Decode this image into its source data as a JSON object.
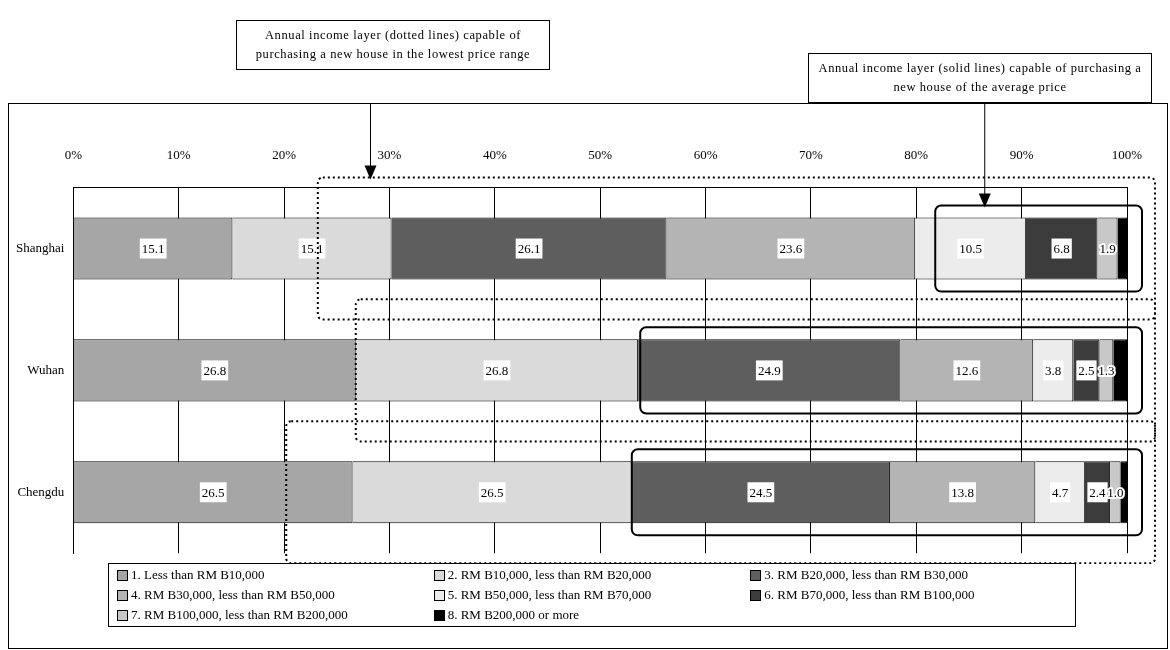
{
  "chart_data": {
    "type": "bar",
    "orientation": "horizontal",
    "stacked": true,
    "categories": [
      "Shanghai",
      "Wuhan",
      "Chengdu"
    ],
    "series": [
      {
        "name": "1. Less than RM B10,000",
        "color": "#a6a6a6",
        "values": [
          15.1,
          26.8,
          26.5
        ],
        "value_labels": [
          "15.1",
          "26.8",
          "26.5"
        ]
      },
      {
        "name": "2. RM B10,000, less than RM B20,000",
        "color": "#dadada",
        "values": [
          15.1,
          26.8,
          26.5
        ],
        "value_labels": [
          "15.1",
          "26.8",
          "26.5"
        ]
      },
      {
        "name": "3. RM B20,000, less than RM B30,000",
        "color": "#5e5e5e",
        "values": [
          26.1,
          24.9,
          24.5
        ],
        "value_labels": [
          "26.1",
          "24.9",
          "24.5"
        ]
      },
      {
        "name": "4. RM B30,000, less than RM B50,000",
        "color": "#b4b4b4",
        "values": [
          23.6,
          12.6,
          13.8
        ],
        "value_labels": [
          "23.6",
          "12.6",
          "13.8"
        ]
      },
      {
        "name": "5. RM B50,000, less than RM B70,000",
        "color": "#ececec",
        "values": [
          10.5,
          3.8,
          4.7
        ],
        "value_labels": [
          "10.5",
          "3.8",
          "4.7"
        ]
      },
      {
        "name": "6. RM B70,000, less than RM B100,000",
        "color": "#3c3c3c",
        "values": [
          6.8,
          2.5,
          2.4
        ],
        "value_labels": [
          "6.8",
          "2.5",
          "2.4"
        ]
      },
      {
        "name": "7. RM B100,000, less than RM B200,000",
        "color": "#c8c8c8",
        "values": [
          1.9,
          1.3,
          1.0
        ],
        "value_labels": [
          "1.9",
          "1.3",
          "1.0"
        ]
      },
      {
        "name": "8. RM B200,000 or more",
        "color": "#000000",
        "values": [
          0.9,
          1.3,
          0.6
        ],
        "value_labels": [
          null,
          null,
          null
        ]
      }
    ],
    "xlim": [
      0,
      100
    ],
    "xticks": [
      {
        "value": 0,
        "label": "0%"
      },
      {
        "value": 10,
        "label": "10%"
      },
      {
        "value": 20,
        "label": "20%"
      },
      {
        "value": 30,
        "label": "30%"
      },
      {
        "value": 40,
        "label": "40%"
      },
      {
        "value": 50,
        "label": "50%"
      },
      {
        "value": 60,
        "label": "60%"
      },
      {
        "value": 70,
        "label": "70%"
      },
      {
        "value": 80,
        "label": "80%"
      },
      {
        "value": 90,
        "label": "90%"
      },
      {
        "value": 100,
        "label": "100%"
      }
    ],
    "grid": "x",
    "legend": "bottom",
    "annotations": [
      "Annual income layer (dotted lines) capable of purchasing a new house in the lowest price range",
      "Annual income layer (solid lines) capable of purchasing a new house of the average price"
    ]
  }
}
